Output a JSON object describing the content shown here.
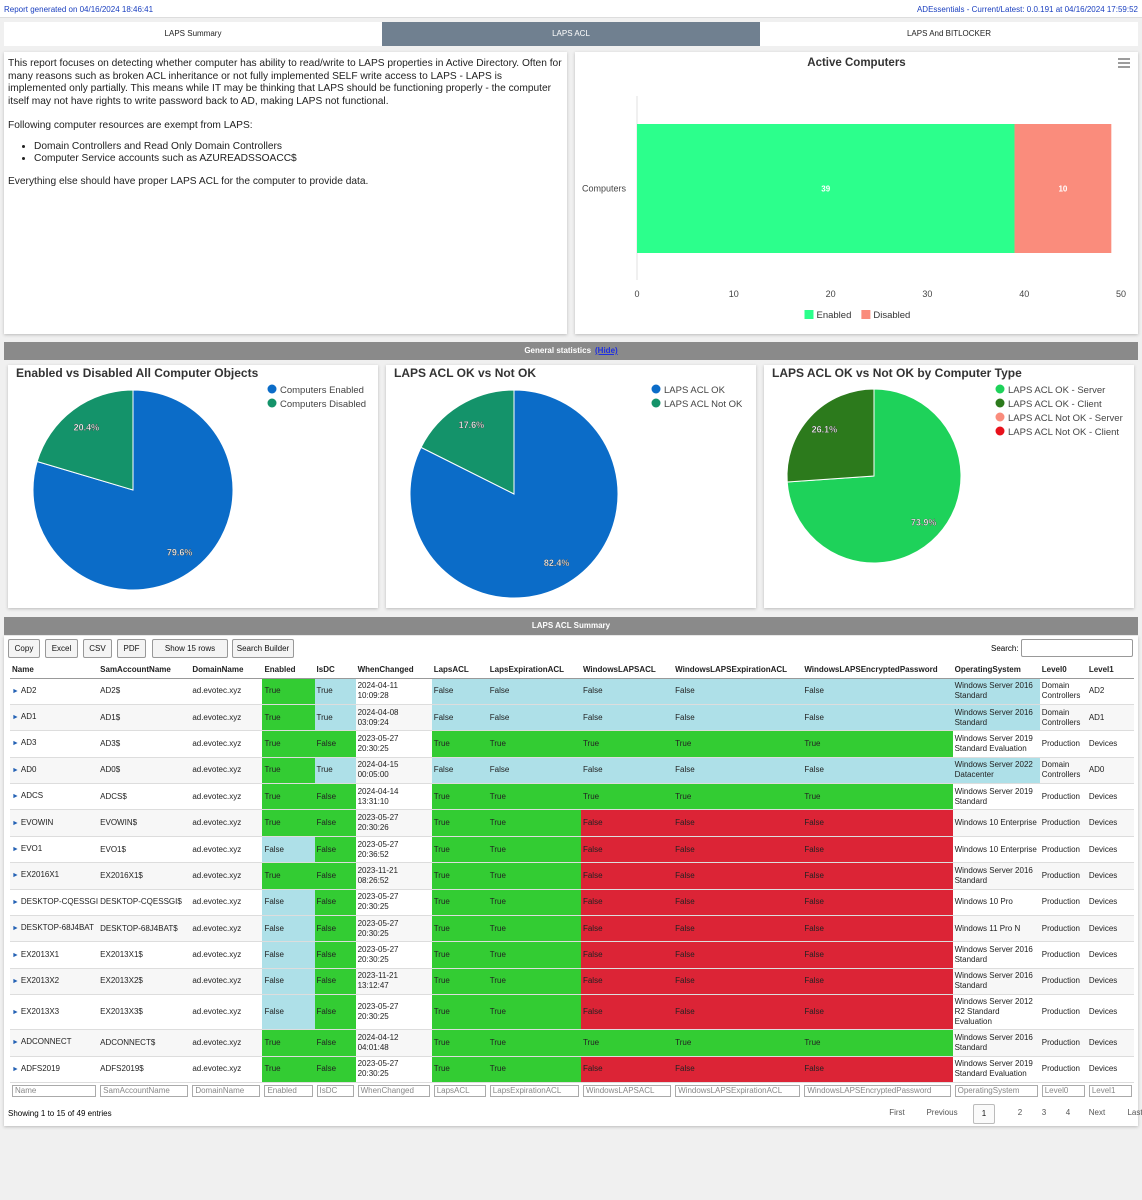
{
  "header": {
    "left": "Report generated on 04/16/2024 18:46:41",
    "right": "ADEssentials - Current/Latest: 0.0.191 at 04/16/2024 17:59:52"
  },
  "tabs": [
    "LAPS Summary",
    "LAPS ACL",
    "LAPS And BITLOCKER"
  ],
  "intro": {
    "paragraphs": [
      "This report focuses on detecting whether computer has ability to read/write to LAPS properties in Active Directory. Often for many reasons such as broken ACL inheritance or not fully implemented SELF write access to LAPS - LAPS is implemented only partially. This means while IT may be thinking that LAPS should be functioning properly - the computer itself may not have rights to write password back to AD, making LAPS not functional.",
      "Following computer resources are exempt from LAPS:",
      "Everything else should have proper LAPS ACL for the computer to provide data."
    ],
    "list": [
      "Domain Controllers and Read Only Domain Controllers",
      "Computer Service accounts such as AZUREADSSOACC$"
    ]
  },
  "chart_data": [
    {
      "type": "bar",
      "orientation": "horizontal",
      "stacked": true,
      "title": "Active Computers",
      "categories": [
        "Computers"
      ],
      "series": [
        {
          "name": "Enabled",
          "color": "#2cff8c",
          "values": [
            39
          ]
        },
        {
          "name": "Disabled",
          "color": "#fa8c7c",
          "values": [
            10
          ]
        }
      ],
      "xlim": [
        0,
        50
      ],
      "xticks": [
        0,
        10,
        20,
        30,
        40,
        50
      ],
      "grid": false,
      "legend": "bottom"
    },
    {
      "type": "pie",
      "title": "Enabled vs Disabled All Computer Objects",
      "categories": [
        "Computers Enabled",
        "Computers Disabled"
      ],
      "values": [
        79.6,
        20.4
      ],
      "value_labels": [
        "79.6%",
        "20.4%"
      ],
      "colors": [
        "#0b6cc8",
        "#14936a"
      ],
      "legend": "top-right"
    },
    {
      "type": "pie",
      "title": "LAPS ACL OK vs Not OK",
      "categories": [
        "LAPS ACL OK",
        "LAPS ACL Not OK"
      ],
      "values": [
        82.4,
        17.6
      ],
      "value_labels": [
        "82.4%",
        "17.6%"
      ],
      "colors": [
        "#0b6cc8",
        "#14936a"
      ],
      "legend": "top-right"
    },
    {
      "type": "pie",
      "title": "LAPS ACL OK vs Not OK by Computer Type",
      "categories": [
        "LAPS ACL OK - Server",
        "LAPS ACL OK - Client",
        "LAPS ACL Not OK - Server",
        "LAPS ACL Not OK - Client"
      ],
      "values": [
        73.9,
        26.1,
        0,
        0
      ],
      "value_labels": [
        "73.9%",
        "26.1%",
        null,
        null
      ],
      "colors": [
        "#1ed25a",
        "#2c7a1c",
        "#fa8c7c",
        "#e8111b"
      ],
      "legend": "top-right"
    }
  ],
  "sections": {
    "stats": "General statistics",
    "hide": "(Hide)",
    "summary": "LAPS ACL Summary"
  },
  "table": {
    "buttons": [
      "Copy",
      "Excel",
      "CSV",
      "PDF",
      "Show 15 rows",
      "Search Builder"
    ],
    "search": "Search:",
    "columns": [
      "Name",
      "SamAccountName",
      "DomainName",
      "Enabled",
      "IsDC",
      "WhenChanged",
      "LapsACL",
      "LapsExpirationACL",
      "WindowsLAPSACL",
      "WindowsLAPSExpirationACL",
      "WindowsLAPSEncryptedPassword",
      "OperatingSystem",
      "Level0",
      "Level1"
    ],
    "rows": [
      [
        "AD2",
        "AD2$",
        "ad.evotec.xyz",
        "True",
        "True",
        "2024-04-11 10:09:28",
        "False",
        "False",
        "False",
        "False",
        "False",
        "Windows Server 2016 Standard",
        "Domain Controllers",
        "AD2"
      ],
      [
        "AD1",
        "AD1$",
        "ad.evotec.xyz",
        "True",
        "True",
        "2024-04-08 03:09:24",
        "False",
        "False",
        "False",
        "False",
        "False",
        "Windows Server 2016 Standard",
        "Domain Controllers",
        "AD1"
      ],
      [
        "AD3",
        "AD3$",
        "ad.evotec.xyz",
        "True",
        "False",
        "2023-05-27 20:30:25",
        "True",
        "True",
        "True",
        "True",
        "True",
        "Windows Server 2019 Standard Evaluation",
        "Production",
        "Devices"
      ],
      [
        "AD0",
        "AD0$",
        "ad.evotec.xyz",
        "True",
        "True",
        "2024-04-15 00:05:00",
        "False",
        "False",
        "False",
        "False",
        "False",
        "Windows Server 2022 Datacenter",
        "Domain Controllers",
        "AD0"
      ],
      [
        "ADCS",
        "ADCS$",
        "ad.evotec.xyz",
        "True",
        "False",
        "2024-04-14 13:31:10",
        "True",
        "True",
        "True",
        "True",
        "True",
        "Windows Server 2019 Standard",
        "Production",
        "Devices"
      ],
      [
        "EVOWIN",
        "EVOWIN$",
        "ad.evotec.xyz",
        "True",
        "False",
        "2023-05-27 20:30:26",
        "True",
        "True",
        "False",
        "False",
        "False",
        "Windows 10 Enterprise",
        "Production",
        "Devices"
      ],
      [
        "EVO1",
        "EVO1$",
        "ad.evotec.xyz",
        "False",
        "False",
        "2023-05-27 20:36:52",
        "True",
        "True",
        "False",
        "False",
        "False",
        "Windows 10 Enterprise",
        "Production",
        "Devices"
      ],
      [
        "EX2016X1",
        "EX2016X1$",
        "ad.evotec.xyz",
        "True",
        "False",
        "2023-11-21 08:26:52",
        "True",
        "True",
        "False",
        "False",
        "False",
        "Windows Server 2016 Standard",
        "Production",
        "Devices"
      ],
      [
        "DESKTOP-CQESSGI",
        "DESKTOP-CQESSGI$",
        "ad.evotec.xyz",
        "False",
        "False",
        "2023-05-27 20:30:25",
        "True",
        "True",
        "False",
        "False",
        "False",
        "Windows 10 Pro",
        "Production",
        "Devices"
      ],
      [
        "DESKTOP-68J4BAT",
        "DESKTOP-68J4BAT$",
        "ad.evotec.xyz",
        "False",
        "False",
        "2023-05-27 20:30:25",
        "True",
        "True",
        "False",
        "False",
        "False",
        "Windows 11 Pro N",
        "Production",
        "Devices"
      ],
      [
        "EX2013X1",
        "EX2013X1$",
        "ad.evotec.xyz",
        "False",
        "False",
        "2023-05-27 20:30:25",
        "True",
        "True",
        "False",
        "False",
        "False",
        "Windows Server 2016 Standard",
        "Production",
        "Devices"
      ],
      [
        "EX2013X2",
        "EX2013X2$",
        "ad.evotec.xyz",
        "False",
        "False",
        "2023-11-21 13:12:47",
        "True",
        "True",
        "False",
        "False",
        "False",
        "Windows Server 2016 Standard",
        "Production",
        "Devices"
      ],
      [
        "EX2013X3",
        "EX2013X3$",
        "ad.evotec.xyz",
        "False",
        "False",
        "2023-05-27 20:30:25",
        "True",
        "True",
        "False",
        "False",
        "False",
        "Windows Server 2012 R2 Standard Evaluation",
        "Production",
        "Devices"
      ],
      [
        "ADCONNECT",
        "ADCONNECT$",
        "ad.evotec.xyz",
        "True",
        "False",
        "2024-04-12 04:01:48",
        "True",
        "True",
        "True",
        "True",
        "True",
        "Windows Server 2016 Standard",
        "Production",
        "Devices"
      ],
      [
        "ADFS2019",
        "ADFS2019$",
        "ad.evotec.xyz",
        "True",
        "False",
        "2023-05-27 20:30:25",
        "True",
        "True",
        "False",
        "False",
        "False",
        "Windows Server 2019 Standard Evaluation",
        "Production",
        "Devices"
      ]
    ],
    "info": "Showing 1 to 15 of 49 entries",
    "pager": [
      "First",
      "Previous",
      "1",
      "2",
      "3",
      "4",
      "Next",
      "Last"
    ]
  }
}
